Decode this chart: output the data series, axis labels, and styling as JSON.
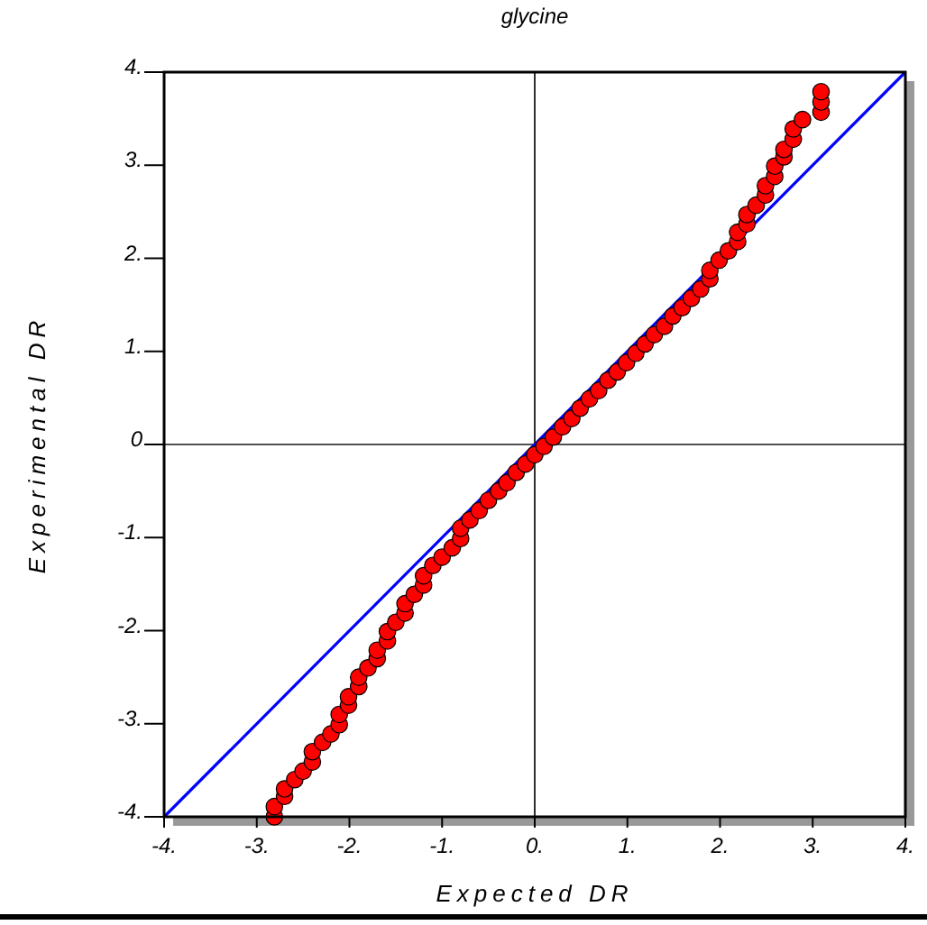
{
  "chart_data": {
    "type": "scatter",
    "title": "glycine",
    "xlabel": "Expected DR",
    "ylabel": "Experimental DR",
    "marker": "circle",
    "grid": false,
    "xlim": [
      -4,
      4
    ],
    "ylim": [
      -4,
      4
    ],
    "xticks": [
      {
        "value": -4,
        "label": "-4."
      },
      {
        "value": -3,
        "label": "-3."
      },
      {
        "value": -2,
        "label": "-2."
      },
      {
        "value": -1,
        "label": "-1."
      },
      {
        "value": 0,
        "label": "0."
      },
      {
        "value": 1,
        "label": "1."
      },
      {
        "value": 2,
        "label": "2."
      },
      {
        "value": 3,
        "label": "3."
      },
      {
        "value": 4,
        "label": "4."
      }
    ],
    "yticks": [
      {
        "value": -4,
        "label": "-4."
      },
      {
        "value": -3,
        "label": "-3."
      },
      {
        "value": -2,
        "label": "-2."
      },
      {
        "value": -1,
        "label": "-1."
      },
      0,
      {
        "value": 1,
        "label": "1."
      },
      {
        "value": 2,
        "label": "2."
      },
      {
        "value": 3,
        "label": "3."
      },
      {
        "value": 4,
        "label": "4."
      }
    ],
    "ref_lines": [
      {
        "axis": "x",
        "value": 0,
        "color": "#303030"
      },
      {
        "axis": "y",
        "value": 0,
        "color": "#505050"
      }
    ],
    "series": [
      {
        "type": "line",
        "color": "#0000ff",
        "x": [
          -4,
          4
        ],
        "values": [
          -4,
          4
        ],
        "marker": "none"
      },
      {
        "type": "scatter",
        "color": "#ff0000",
        "x": [
          -2.81,
          -2.81,
          -2.7,
          -2.7,
          -2.59,
          -2.5,
          -2.4,
          -2.4,
          -2.29,
          -2.2,
          -2.11,
          -2.11,
          -2.01,
          -2.01,
          -1.9,
          -1.9,
          -1.8,
          -1.7,
          -1.7,
          -1.59,
          -1.59,
          -1.5,
          -1.4,
          -1.4,
          -1.3,
          -1.2,
          -1.2,
          -1.1,
          -1.0,
          -0.89,
          -0.8,
          -0.8,
          -0.7,
          -0.6,
          -0.5,
          -0.39,
          -0.3,
          -0.2,
          -0.1,
          0.0,
          0.1,
          0.2,
          0.3,
          0.4,
          0.49,
          0.59,
          0.69,
          0.79,
          0.89,
          0.99,
          1.09,
          1.19,
          1.29,
          1.4,
          1.49,
          1.59,
          1.69,
          1.79,
          1.89,
          1.89,
          1.99,
          2.09,
          2.19,
          2.19,
          2.29,
          2.29,
          2.39,
          2.49,
          2.49,
          2.59,
          2.59,
          2.69,
          2.69,
          2.79,
          2.79,
          2.89,
          3.09,
          3.09,
          3.09
        ],
        "values": [
          -4.0,
          -3.89,
          -3.78,
          -3.7,
          -3.6,
          -3.51,
          -3.41,
          -3.3,
          -3.2,
          -3.11,
          -3.01,
          -2.9,
          -2.8,
          -2.71,
          -2.6,
          -2.5,
          -2.4,
          -2.3,
          -2.21,
          -2.11,
          -2.01,
          -1.91,
          -1.81,
          -1.71,
          -1.61,
          -1.51,
          -1.41,
          -1.3,
          -1.21,
          -1.11,
          -1.01,
          -0.9,
          -0.81,
          -0.71,
          -0.6,
          -0.5,
          -0.41,
          -0.3,
          -0.21,
          -0.11,
          -0.02,
          0.08,
          0.19,
          0.28,
          0.39,
          0.49,
          0.58,
          0.69,
          0.78,
          0.88,
          0.98,
          1.08,
          1.18,
          1.27,
          1.38,
          1.47,
          1.57,
          1.67,
          1.78,
          1.87,
          1.98,
          2.08,
          2.18,
          2.28,
          2.37,
          2.47,
          2.57,
          2.68,
          2.78,
          2.88,
          2.99,
          3.09,
          3.17,
          3.28,
          3.39,
          3.49,
          3.57,
          3.68,
          3.79
        ]
      }
    ]
  }
}
